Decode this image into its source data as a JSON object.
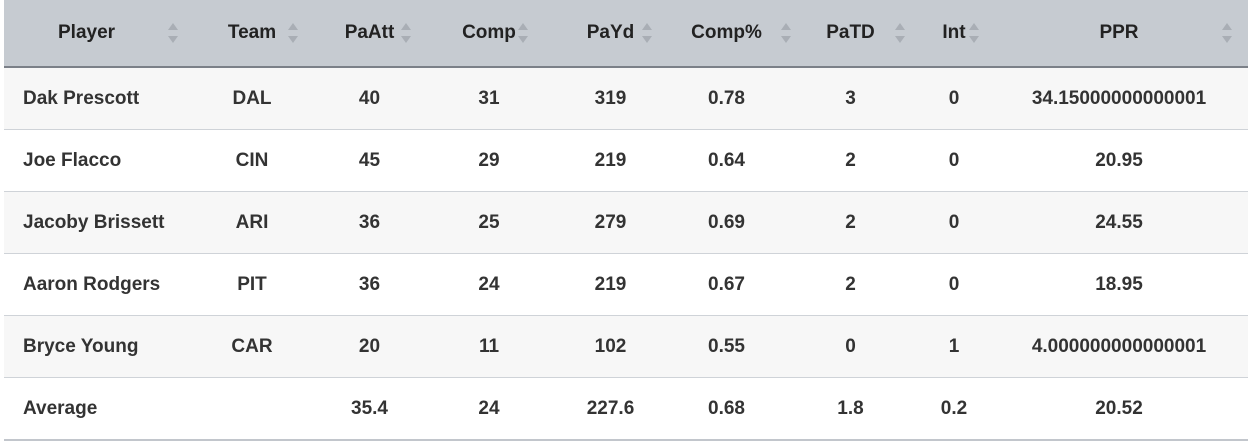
{
  "table": {
    "columns": [
      {
        "key": "player",
        "label": "Player"
      },
      {
        "key": "team",
        "label": "Team"
      },
      {
        "key": "paatt",
        "label": "PaAtt"
      },
      {
        "key": "comp",
        "label": "Comp"
      },
      {
        "key": "payd",
        "label": "PaYd"
      },
      {
        "key": "comp_pct",
        "label": "Comp%"
      },
      {
        "key": "patd",
        "label": "PaTD"
      },
      {
        "key": "int",
        "label": "Int"
      },
      {
        "key": "ppr",
        "label": "PPR"
      }
    ],
    "rows": [
      {
        "player": "Dak Prescott",
        "team": "DAL",
        "paatt": "40",
        "comp": "31",
        "payd": "319",
        "comp_pct": "0.78",
        "patd": "3",
        "int": "0",
        "ppr": "34.15000000000001"
      },
      {
        "player": "Joe Flacco",
        "team": "CIN",
        "paatt": "45",
        "comp": "29",
        "payd": "219",
        "comp_pct": "0.64",
        "patd": "2",
        "int": "0",
        "ppr": "20.95"
      },
      {
        "player": "Jacoby Brissett",
        "team": "ARI",
        "paatt": "36",
        "comp": "25",
        "payd": "279",
        "comp_pct": "0.69",
        "patd": "2",
        "int": "0",
        "ppr": "24.55"
      },
      {
        "player": "Aaron Rodgers",
        "team": "PIT",
        "paatt": "36",
        "comp": "24",
        "payd": "219",
        "comp_pct": "0.67",
        "patd": "2",
        "int": "0",
        "ppr": "18.95"
      },
      {
        "player": "Bryce Young",
        "team": "CAR",
        "paatt": "20",
        "comp": "11",
        "payd": "102",
        "comp_pct": "0.55",
        "patd": "0",
        "int": "1",
        "ppr": "4.000000000000001"
      }
    ],
    "average": {
      "player": "Average",
      "team": "",
      "paatt": "35.4",
      "comp": "24",
      "payd": "227.6",
      "comp_pct": "0.68",
      "patd": "1.8",
      "int": "0.2",
      "ppr": "20.52"
    }
  }
}
